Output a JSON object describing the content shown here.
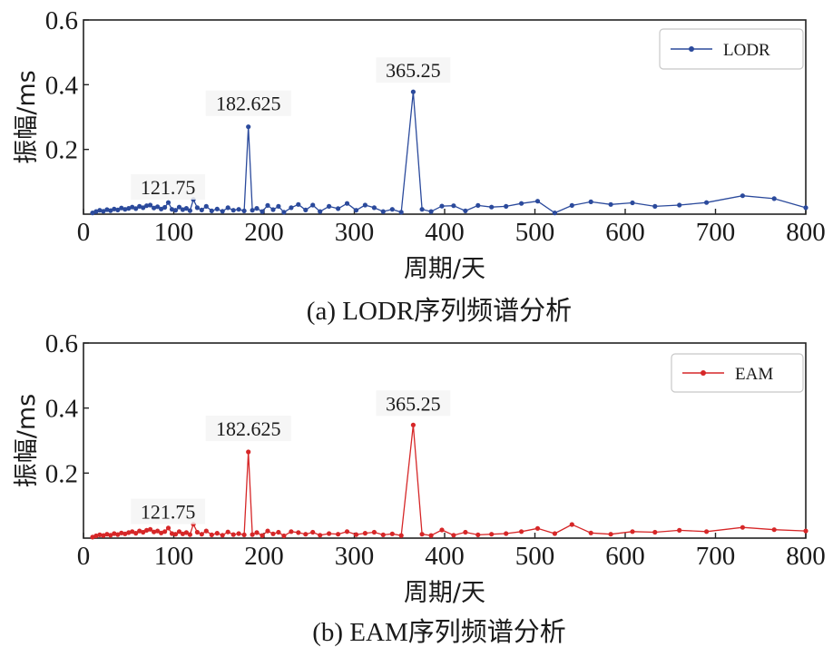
{
  "chart_data": [
    {
      "type": "line",
      "caption": "(a) LODR序列频谱分析",
      "xlabel": "周期/天",
      "ylabel": "振幅/ms",
      "xlim": [
        0,
        800
      ],
      "ylim": [
        0,
        0.6
      ],
      "xticks": [
        "0",
        "100",
        "200",
        "300",
        "400",
        "500",
        "600",
        "700",
        "800"
      ],
      "yticks": [
        "0.2",
        "0.4",
        "0.6"
      ],
      "legend_position": "top-right",
      "color": "#2b4a9c",
      "series": [
        {
          "name": "LODR",
          "x": [
            10,
            14,
            18,
            22,
            26,
            30,
            34,
            38,
            42,
            46,
            50,
            54,
            58,
            62,
            66,
            70,
            74,
            78,
            82,
            86,
            90,
            94,
            98,
            102,
            106,
            110,
            114,
            118,
            121.75,
            126,
            131,
            136,
            142,
            148,
            154,
            160,
            166,
            172,
            178,
            182.625,
            187,
            192,
            198,
            204,
            210,
            216,
            222,
            230,
            238,
            246,
            254,
            262,
            272,
            282,
            292,
            302,
            312,
            322,
            332,
            342,
            352,
            365.25,
            375,
            385,
            397,
            410,
            423,
            437,
            452,
            468,
            485,
            503,
            522,
            541,
            562,
            584,
            608,
            633,
            660,
            690,
            730,
            765,
            800
          ],
          "y": [
            0.004,
            0.008,
            0.012,
            0.009,
            0.014,
            0.011,
            0.016,
            0.013,
            0.019,
            0.015,
            0.018,
            0.022,
            0.017,
            0.024,
            0.02,
            0.026,
            0.028,
            0.019,
            0.023,
            0.016,
            0.021,
            0.036,
            0.015,
            0.012,
            0.022,
            0.014,
            0.018,
            0.011,
            0.045,
            0.02,
            0.013,
            0.024,
            0.01,
            0.016,
            0.009,
            0.02,
            0.012,
            0.015,
            0.01,
            0.27,
            0.012,
            0.018,
            0.008,
            0.027,
            0.014,
            0.024,
            0.006,
            0.02,
            0.03,
            0.013,
            0.028,
            0.008,
            0.024,
            0.017,
            0.033,
            0.012,
            0.028,
            0.02,
            0.008,
            0.015,
            0.006,
            0.378,
            0.015,
            0.008,
            0.025,
            0.026,
            0.01,
            0.027,
            0.022,
            0.024,
            0.033,
            0.04,
            0.004,
            0.027,
            0.038,
            0.03,
            0.035,
            0.024,
            0.028,
            0.036,
            0.057,
            0.048,
            0.02
          ]
        }
      ],
      "annotations": [
        {
          "x": 121.75,
          "y": 0.045,
          "text": "121.75"
        },
        {
          "x": 182.625,
          "y": 0.27,
          "text": "182.625"
        },
        {
          "x": 365.25,
          "y": 0.378,
          "text": "365.25"
        }
      ]
    },
    {
      "type": "line",
      "caption": "(b) EAM序列频谱分析",
      "xlabel": "周期/天",
      "ylabel": "振幅/ms",
      "xlim": [
        0,
        800
      ],
      "ylim": [
        0,
        0.6
      ],
      "xticks": [
        "0",
        "100",
        "200",
        "300",
        "400",
        "500",
        "600",
        "700",
        "800"
      ],
      "yticks": [
        "0.2",
        "0.4",
        "0.6"
      ],
      "legend_position": "top-right",
      "color": "#d62728",
      "series": [
        {
          "name": "EAM",
          "x": [
            10,
            14,
            18,
            22,
            26,
            30,
            34,
            38,
            42,
            46,
            50,
            54,
            58,
            62,
            66,
            70,
            74,
            78,
            82,
            86,
            90,
            94,
            98,
            102,
            106,
            110,
            114,
            118,
            121.75,
            126,
            131,
            136,
            142,
            148,
            154,
            160,
            166,
            172,
            178,
            182.625,
            187,
            192,
            198,
            204,
            210,
            216,
            222,
            230,
            238,
            246,
            254,
            262,
            272,
            282,
            292,
            302,
            312,
            322,
            332,
            342,
            352,
            365.25,
            375,
            385,
            397,
            410,
            423,
            437,
            452,
            468,
            485,
            503,
            522,
            541,
            562,
            584,
            608,
            633,
            660,
            690,
            730,
            765,
            800
          ],
          "y": [
            0.003,
            0.007,
            0.01,
            0.008,
            0.012,
            0.009,
            0.014,
            0.011,
            0.016,
            0.013,
            0.017,
            0.02,
            0.015,
            0.022,
            0.018,
            0.024,
            0.027,
            0.019,
            0.022,
            0.016,
            0.02,
            0.031,
            0.014,
            0.012,
            0.02,
            0.013,
            0.017,
            0.011,
            0.043,
            0.018,
            0.012,
            0.022,
            0.01,
            0.015,
            0.009,
            0.019,
            0.011,
            0.014,
            0.01,
            0.265,
            0.011,
            0.017,
            0.008,
            0.022,
            0.013,
            0.018,
            0.007,
            0.02,
            0.017,
            0.012,
            0.018,
            0.009,
            0.014,
            0.012,
            0.02,
            0.011,
            0.015,
            0.018,
            0.01,
            0.013,
            0.008,
            0.348,
            0.012,
            0.008,
            0.025,
            0.009,
            0.018,
            0.01,
            0.012,
            0.014,
            0.02,
            0.03,
            0.014,
            0.042,
            0.016,
            0.012,
            0.02,
            0.018,
            0.024,
            0.02,
            0.033,
            0.026,
            0.022
          ]
        }
      ],
      "annotations": [
        {
          "x": 121.75,
          "y": 0.043,
          "text": "121.75"
        },
        {
          "x": 182.625,
          "y": 0.265,
          "text": "182.625"
        },
        {
          "x": 365.25,
          "y": 0.348,
          "text": "365.25"
        }
      ]
    }
  ]
}
